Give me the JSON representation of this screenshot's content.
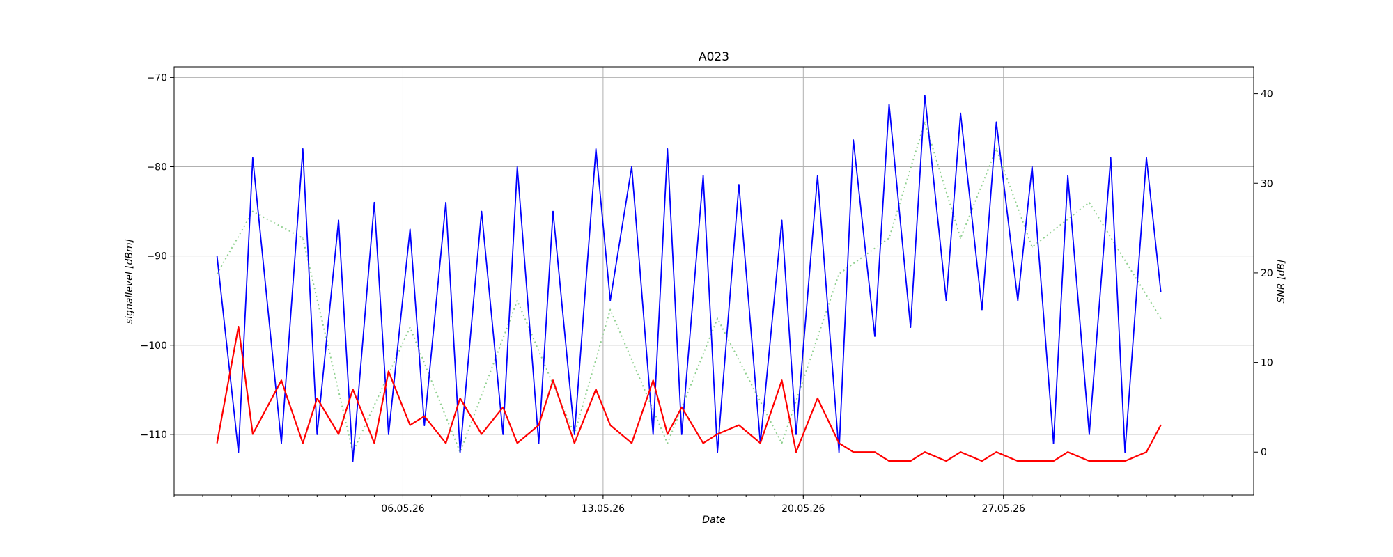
{
  "chart_data": {
    "type": "line",
    "title": "A023",
    "xlabel": "Date",
    "ylabel_left": "signallevel [dBm]",
    "ylabel_right": "SNR [dB]",
    "x_range": [
      "2026-04-28T00:00",
      "2026-06-04T18:00"
    ],
    "x_major_ticks": [
      {
        "date": "2026-05-06",
        "label": "06.05.26"
      },
      {
        "date": "2026-05-13",
        "label": "13.05.26"
      },
      {
        "date": "2026-05-20",
        "label": "20.05.26"
      },
      {
        "date": "2026-05-27",
        "label": "27.05.26"
      }
    ],
    "x_minor_tick_interval_days": 1,
    "ylim_left": [
      -116.8,
      -68.8
    ],
    "yticks_left": [
      -110,
      -100,
      -90,
      -80,
      -70
    ],
    "ylim_right": [
      -4.8,
      43.0
    ],
    "yticks_right": [
      0,
      10,
      20,
      30,
      40
    ],
    "grid": true,
    "colors": {
      "signal": "#0000ff",
      "snr": "#ff0000",
      "dotted": "#90d090",
      "grid": "#b0b0b0"
    },
    "series": [
      {
        "key": "signal",
        "axis": "left",
        "style": "solid",
        "x": [
          "2026-04-29T12:00",
          "2026-04-30T06:00",
          "2026-04-30T18:00",
          "2026-05-01T18:00",
          "2026-05-02T12:00",
          "2026-05-03T00:00",
          "2026-05-03T18:00",
          "2026-05-04T06:00",
          "2026-05-05T00:00",
          "2026-05-05T12:00",
          "2026-05-06T06:00",
          "2026-05-06T18:00",
          "2026-05-07T12:00",
          "2026-05-08T00:00",
          "2026-05-08T18:00",
          "2026-05-09T12:00",
          "2026-05-10T00:00",
          "2026-05-10T18:00",
          "2026-05-11T06:00",
          "2026-05-12T00:00",
          "2026-05-12T18:00",
          "2026-05-13T06:00",
          "2026-05-14T00:00",
          "2026-05-14T18:00",
          "2026-05-15T06:00",
          "2026-05-15T18:00",
          "2026-05-16T12:00",
          "2026-05-17T00:00",
          "2026-05-17T18:00",
          "2026-05-18T12:00",
          "2026-05-19T06:00",
          "2026-05-19T18:00",
          "2026-05-20T12:00",
          "2026-05-21T06:00",
          "2026-05-21T18:00",
          "2026-05-22T12:00",
          "2026-05-23T00:00",
          "2026-05-23T18:00",
          "2026-05-24T06:00",
          "2026-05-25T00:00",
          "2026-05-25T12:00",
          "2026-05-26T06:00",
          "2026-05-26T18:00",
          "2026-05-27T12:00",
          "2026-05-28T00:00",
          "2026-05-28T18:00",
          "2026-05-29T06:00",
          "2026-05-30T00:00",
          "2026-05-30T18:00",
          "2026-05-31T06:00",
          "2026-06-01T00:00",
          "2026-06-01T12:00"
        ],
        "y": [
          -90,
          -112,
          -79,
          -111,
          -78,
          -110,
          -86,
          -113,
          -84,
          -110,
          -87,
          -109,
          -84,
          -112,
          -85,
          -110,
          -80,
          -111,
          -85,
          -110,
          -78,
          -95,
          -80,
          -110,
          -78,
          -110,
          -81,
          -112,
          -82,
          -111,
          -86,
          -110,
          -81,
          -112,
          -77,
          -99,
          -73,
          -98,
          -72,
          -95,
          -74,
          -96,
          -75,
          -95,
          -80,
          -111,
          -81,
          -110,
          -79,
          -112,
          -79,
          -94
        ]
      },
      {
        "key": "snr",
        "axis": "right",
        "style": "solid",
        "x": [
          "2026-04-29T12:00",
          "2026-04-30T06:00",
          "2026-04-30T18:00",
          "2026-05-01T18:00",
          "2026-05-02T12:00",
          "2026-05-03T00:00",
          "2026-05-03T18:00",
          "2026-05-04T06:00",
          "2026-05-05T00:00",
          "2026-05-05T12:00",
          "2026-05-06T06:00",
          "2026-05-06T18:00",
          "2026-05-07T12:00",
          "2026-05-08T00:00",
          "2026-05-08T18:00",
          "2026-05-09T12:00",
          "2026-05-10T00:00",
          "2026-05-10T18:00",
          "2026-05-11T06:00",
          "2026-05-12T00:00",
          "2026-05-12T18:00",
          "2026-05-13T06:00",
          "2026-05-14T00:00",
          "2026-05-14T18:00",
          "2026-05-15T06:00",
          "2026-05-15T18:00",
          "2026-05-16T12:00",
          "2026-05-17T00:00",
          "2026-05-17T18:00",
          "2026-05-18T12:00",
          "2026-05-19T06:00",
          "2026-05-19T18:00",
          "2026-05-20T12:00",
          "2026-05-21T06:00",
          "2026-05-21T18:00",
          "2026-05-22T12:00",
          "2026-05-23T00:00",
          "2026-05-23T18:00",
          "2026-05-24T06:00",
          "2026-05-25T00:00",
          "2026-05-25T12:00",
          "2026-05-26T06:00",
          "2026-05-26T18:00",
          "2026-05-27T12:00",
          "2026-05-28T00:00",
          "2026-05-28T18:00",
          "2026-05-29T06:00",
          "2026-05-30T00:00",
          "2026-05-30T18:00",
          "2026-05-31T06:00",
          "2026-06-01T00:00",
          "2026-06-01T12:00"
        ],
        "y": [
          1,
          14,
          2,
          8,
          1,
          6,
          2,
          7,
          1,
          9,
          3,
          4,
          1,
          6,
          2,
          5,
          1,
          3,
          8,
          1,
          7,
          3,
          1,
          8,
          2,
          5,
          1,
          2,
          3,
          1,
          8,
          0,
          6,
          1,
          0,
          0,
          -1,
          -1,
          0,
          -1,
          0,
          -1,
          0,
          -1,
          -1,
          -1,
          0,
          -1,
          -1,
          -1,
          0,
          3
        ]
      },
      {
        "key": "dotted",
        "axis": "left",
        "style": "dotted",
        "x": [
          "2026-04-29T12:00",
          "2026-04-30T18:00",
          "2026-05-02T12:00",
          "2026-05-04T06:00",
          "2026-05-06T06:00",
          "2026-05-08T00:00",
          "2026-05-10T00:00",
          "2026-05-12T00:00",
          "2026-05-13T06:00",
          "2026-05-15T06:00",
          "2026-05-17T00:00",
          "2026-05-19T06:00",
          "2026-05-21T06:00",
          "2026-05-23T00:00",
          "2026-05-24T06:00",
          "2026-05-25T12:00",
          "2026-05-26T18:00",
          "2026-05-28T00:00",
          "2026-05-30T00:00",
          "2026-06-01T12:00"
        ],
        "y": [
          -92,
          -85,
          -88,
          -112,
          -98,
          -112,
          -95,
          -110,
          -96,
          -111,
          -97,
          -111,
          -92,
          -88,
          -75,
          -88,
          -78,
          -89,
          -84,
          -97
        ]
      }
    ]
  }
}
